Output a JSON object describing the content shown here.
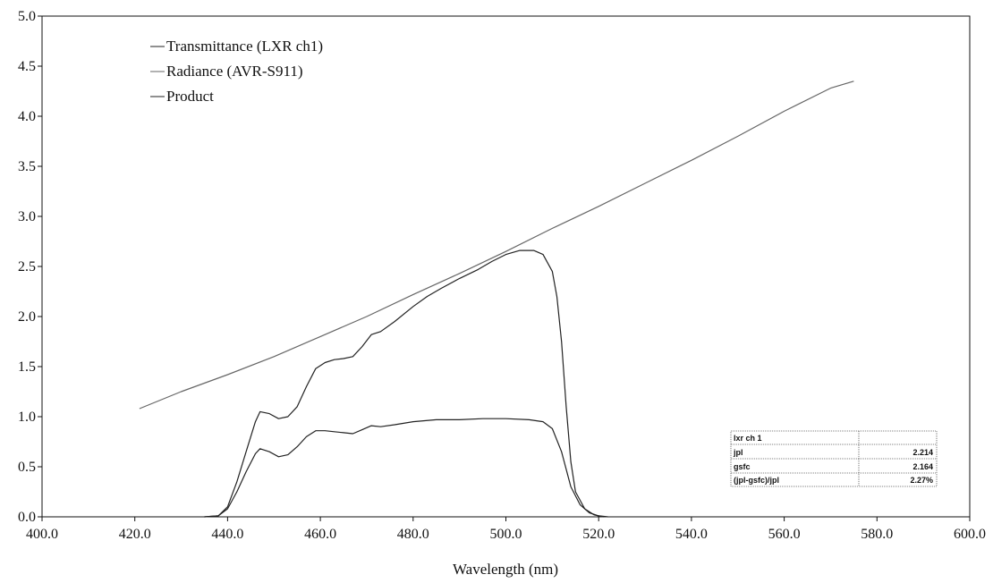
{
  "chart_data": {
    "type": "line",
    "title": "",
    "xlabel": "Wavelength (nm)",
    "ylabel": "",
    "xlim": [
      400,
      600
    ],
    "ylim": [
      0,
      5
    ],
    "x_ticks": [
      "400.0",
      "420.0",
      "440.0",
      "460.0",
      "480.0",
      "500.0",
      "520.0",
      "540.0",
      "560.0",
      "580.0",
      "600.0"
    ],
    "y_ticks": [
      "0.0",
      "0.5",
      "1.0",
      "1.5",
      "2.0",
      "2.5",
      "3.0",
      "3.5",
      "4.0",
      "4.5",
      "5.0"
    ],
    "grid": false,
    "legend_position": "top-left",
    "series": [
      {
        "name": "Transmittance (LXR ch1)",
        "color": "#222222",
        "points": [
          [
            435,
            0
          ],
          [
            438,
            0.01
          ],
          [
            440,
            0.08
          ],
          [
            442,
            0.25
          ],
          [
            444,
            0.45
          ],
          [
            446,
            0.63
          ],
          [
            447,
            0.68
          ],
          [
            449,
            0.65
          ],
          [
            451,
            0.6
          ],
          [
            453,
            0.62
          ],
          [
            455,
            0.7
          ],
          [
            457,
            0.8
          ],
          [
            459,
            0.86
          ],
          [
            461,
            0.86
          ],
          [
            463,
            0.85
          ],
          [
            465,
            0.84
          ],
          [
            467,
            0.83
          ],
          [
            469,
            0.87
          ],
          [
            471,
            0.91
          ],
          [
            473,
            0.9
          ],
          [
            476,
            0.92
          ],
          [
            480,
            0.95
          ],
          [
            485,
            0.97
          ],
          [
            490,
            0.97
          ],
          [
            495,
            0.98
          ],
          [
            500,
            0.98
          ],
          [
            505,
            0.97
          ],
          [
            508,
            0.95
          ],
          [
            510,
            0.88
          ],
          [
            512,
            0.65
          ],
          [
            514,
            0.3
          ],
          [
            516,
            0.12
          ],
          [
            518,
            0.04
          ],
          [
            520,
            0.01
          ],
          [
            522,
            0
          ]
        ]
      },
      {
        "name": "Radiance (AVR-S911)",
        "color": "#666666",
        "points": [
          [
            421,
            1.08
          ],
          [
            430,
            1.25
          ],
          [
            440,
            1.42
          ],
          [
            450,
            1.6
          ],
          [
            460,
            1.8
          ],
          [
            470,
            2.0
          ],
          [
            480,
            2.22
          ],
          [
            490,
            2.43
          ],
          [
            500,
            2.65
          ],
          [
            510,
            2.88
          ],
          [
            520,
            3.1
          ],
          [
            530,
            3.33
          ],
          [
            540,
            3.56
          ],
          [
            550,
            3.8
          ],
          [
            560,
            4.05
          ],
          [
            570,
            4.28
          ],
          [
            575,
            4.35
          ]
        ]
      },
      {
        "name": "Product",
        "color": "#222222",
        "points": [
          [
            435,
            0
          ],
          [
            438,
            0.01
          ],
          [
            440,
            0.1
          ],
          [
            442,
            0.35
          ],
          [
            444,
            0.65
          ],
          [
            446,
            0.95
          ],
          [
            447,
            1.05
          ],
          [
            449,
            1.03
          ],
          [
            451,
            0.98
          ],
          [
            453,
            1.0
          ],
          [
            455,
            1.1
          ],
          [
            457,
            1.3
          ],
          [
            459,
            1.48
          ],
          [
            461,
            1.54
          ],
          [
            463,
            1.57
          ],
          [
            465,
            1.58
          ],
          [
            467,
            1.6
          ],
          [
            469,
            1.7
          ],
          [
            471,
            1.82
          ],
          [
            473,
            1.85
          ],
          [
            476,
            1.95
          ],
          [
            480,
            2.1
          ],
          [
            483,
            2.2
          ],
          [
            486,
            2.28
          ],
          [
            490,
            2.38
          ],
          [
            494,
            2.47
          ],
          [
            497,
            2.55
          ],
          [
            500,
            2.62
          ],
          [
            503,
            2.66
          ],
          [
            506,
            2.66
          ],
          [
            508,
            2.62
          ],
          [
            510,
            2.45
          ],
          [
            511,
            2.2
          ],
          [
            512,
            1.75
          ],
          [
            513,
            1.1
          ],
          [
            514,
            0.55
          ],
          [
            515,
            0.25
          ],
          [
            517,
            0.08
          ],
          [
            519,
            0.02
          ],
          [
            521,
            0
          ]
        ]
      }
    ],
    "inset_table": {
      "title": "lxr ch 1",
      "rows": [
        {
          "label": "jpl",
          "value": "2.214"
        },
        {
          "label": "gsfc",
          "value": "2.164"
        },
        {
          "label": "(jpl-gsfc)/jpl",
          "value": "2.27%"
        }
      ]
    }
  }
}
